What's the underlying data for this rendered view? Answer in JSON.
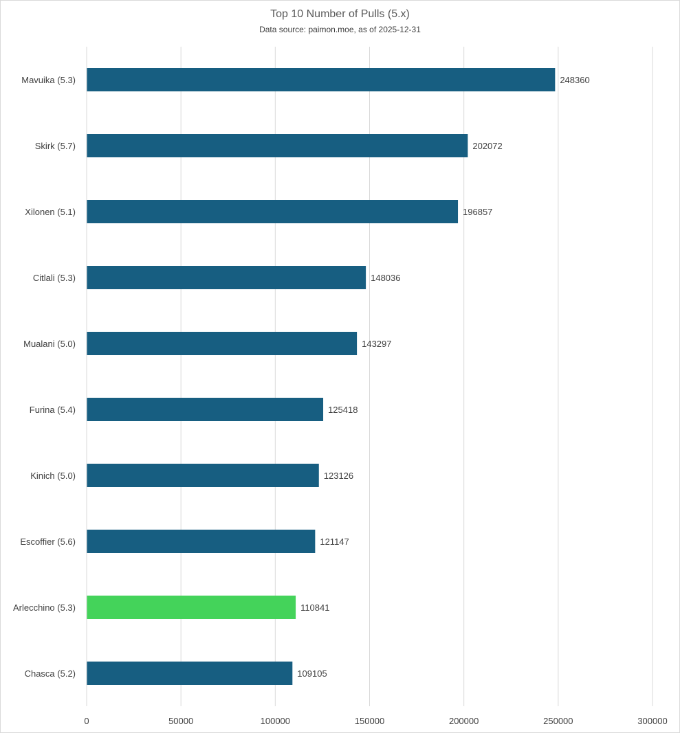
{
  "chart_data": {
    "type": "bar",
    "orientation": "horizontal",
    "title": "Top 10 Number of Pulls (5.x)",
    "subtitle": "Data source: paimon.moe, as of 2025-12-31",
    "xlabel": "",
    "ylabel": "",
    "xlim": [
      0,
      300000
    ],
    "x_ticks": [
      "0",
      "50000",
      "100000",
      "150000",
      "200000",
      "250000",
      "300000"
    ],
    "grid": true,
    "legend": "none",
    "categories": [
      "Mavuika (5.3)",
      "Skirk (5.7)",
      "Xilonen (5.1)",
      "Citlali (5.3)",
      "Mualani (5.0)",
      "Furina (5.4)",
      "Kinich (5.0)",
      "Escoffier (5.6)",
      "Arlecchino (5.3)",
      "Chasca (5.2)"
    ],
    "values": [
      248360,
      202072,
      196857,
      148036,
      143297,
      125418,
      123126,
      121147,
      110841,
      109105
    ],
    "bar_colors": [
      "#175e81",
      "#175e81",
      "#175e81",
      "#175e81",
      "#175e81",
      "#175e81",
      "#175e81",
      "#175e81",
      "#44d35a",
      "#175e81"
    ]
  }
}
